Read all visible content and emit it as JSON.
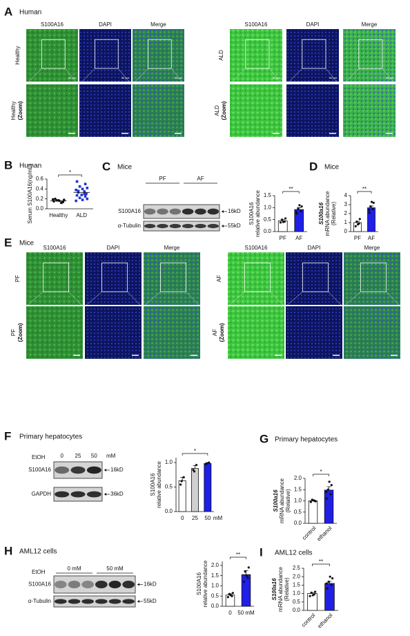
{
  "panels": [
    {
      "label": "A",
      "title": "Human",
      "images": [
        {
          "columns": [
            "S100A16",
            "DAPI",
            "Merge"
          ],
          "rows": [
            "Healthy",
            "Healthy"
          ],
          "zoom": "(Zoom)",
          "scale": "50 μm"
        },
        {
          "columns": [
            "S100A16",
            "DAPI",
            "Merge"
          ],
          "rows": [
            "ALD",
            "ALD"
          ],
          "zoom": "(Zoom)",
          "scale": "50 μm"
        }
      ]
    },
    {
      "label": "B",
      "title": "Human",
      "chart": {
        "type": "scatter",
        "ylabel": [
          "Serum S100A16(ng/mL)"
        ],
        "categories": [
          "Healthy",
          "ALD"
        ],
        "points": [
          [
            0.15,
            0.13,
            0.17,
            0.18,
            0.16,
            0.19,
            0.12,
            0.2,
            0.14,
            0.17
          ],
          [
            0.55,
            0.5,
            0.45,
            0.42,
            0.4,
            0.38,
            0.35,
            0.33,
            0.3,
            0.28,
            0.27,
            0.25,
            0.22,
            0.2,
            0.18,
            0.16,
            0.3,
            0.36
          ]
        ],
        "means": [
          0.16,
          0.33
        ],
        "colors": [
          "#111111",
          "#2233cc"
        ],
        "ylim": [
          0,
          0.6
        ],
        "yticks": [
          {
            "value": 0,
            "label": "0.0"
          },
          0.2,
          0.4,
          0.6
        ],
        "significance": "*"
      }
    },
    {
      "label": "C",
      "title": "Mice",
      "blot": {
        "groups": [
          "PF",
          "AF"
        ],
        "rows": [
          {
            "name": "S100A16",
            "size": "16kD"
          },
          {
            "name": "α-Tubulin",
            "size": "55kD"
          }
        ]
      },
      "chart": {
        "type": "bar",
        "ylabel": [
          "S100A16",
          "relative abundance"
        ],
        "categories": [
          "PF",
          "AF"
        ],
        "values": [
          0.45,
          0.92
        ],
        "errors": [
          0.05,
          0.08
        ],
        "colors": [
          "#ffffff",
          "#1f1fe6"
        ],
        "points": [
          [
            0.38,
            0.42,
            0.5,
            0.55,
            0.4
          ],
          [
            0.75,
            0.85,
            0.95,
            1.05,
            1.1,
            0.82
          ]
        ],
        "ylim": [
          0,
          1.5
        ],
        "yticks": [
          {
            "value": 0,
            "label": "0.0"
          },
          0.5,
          {
            "value": 1,
            "label": "1.0"
          },
          1.5
        ],
        "significance": "**"
      }
    },
    {
      "label": "D",
      "title": "Mice",
      "chart": {
        "type": "bar",
        "ylabel": [
          "S100a16",
          "mRNA abundance",
          "(Relative)"
        ],
        "categories": [
          "PF",
          "AF"
        ],
        "values": [
          1.0,
          2.65
        ],
        "errors": [
          0.15,
          0.2
        ],
        "colors": [
          "#ffffff",
          "#1f1fe6"
        ],
        "points": [
          [
            0.6,
            0.9,
            1.1,
            1.4,
            0.8
          ],
          [
            2.1,
            2.5,
            2.8,
            3.2,
            3.3,
            2.4
          ]
        ],
        "ylim": [
          0,
          4
        ],
        "yticks": [
          0,
          1,
          2,
          3,
          4
        ],
        "significance": "**"
      }
    },
    {
      "label": "E",
      "title": "Mice",
      "images": [
        {
          "columns": [
            "S100A16",
            "DAPI",
            "Merge"
          ],
          "rows": [
            "PF",
            "PF"
          ],
          "zoom": "(Zoom)"
        },
        {
          "columns": [
            "S100A16",
            "DAPI",
            "Merge"
          ],
          "rows": [
            "AF",
            "AF"
          ],
          "zoom": "(Zoom)"
        }
      ]
    },
    {
      "label": "F",
      "title": "Primary hepatocytes",
      "blot": {
        "treatment": "EtOH",
        "lanes": [
          "0",
          "25",
          "50"
        ],
        "unit": "mM",
        "rows": [
          {
            "name": "S100A16",
            "size": "16kD"
          },
          {
            "name": "GAPDH",
            "size": "36kD"
          }
        ]
      },
      "chart": {
        "type": "bar",
        "ylabel": [
          "S100A16",
          "relative abundance"
        ],
        "categories": [
          "0",
          "25",
          "50"
        ],
        "xunit": "mM",
        "values": [
          0.63,
          0.88,
          0.98
        ],
        "errors": [
          0.07,
          0.06,
          0.02
        ],
        "colors": [
          "#ffffff",
          "#d0d0d0",
          "#1f1fe6"
        ],
        "points": [
          [
            0.55,
            0.7,
            0.62
          ],
          [
            0.85,
            0.95,
            0.82
          ],
          [
            0.97,
            1.0,
            0.98
          ]
        ],
        "ylim": [
          0,
          1.1
        ],
        "yticks": [
          {
            "value": 0,
            "label": "0.0"
          },
          0.5,
          {
            "value": 1,
            "label": "1.0"
          }
        ],
        "significance": "*"
      }
    },
    {
      "label": "G",
      "title": "Primary hepatocytes",
      "chart": {
        "type": "bar",
        "ylabel": [
          "S100a16",
          "mRNA abundance",
          "(Relative)"
        ],
        "categories": [
          "control",
          "ethanol"
        ],
        "rotate_labels": true,
        "values": [
          1.0,
          1.48
        ],
        "errors": [
          0.04,
          0.15
        ],
        "colors": [
          "#ffffff",
          "#1f1fe6"
        ],
        "points": [
          [
            0.95,
            1.0,
            1.05,
            0.98,
            1.02
          ],
          [
            1.1,
            1.3,
            1.5,
            1.7,
            1.85,
            1.4
          ]
        ],
        "ylim": [
          0,
          2.0
        ],
        "yticks": [
          {
            "value": 0,
            "label": "0.0"
          },
          0.5,
          {
            "value": 1,
            "label": "1.0"
          },
          1.5,
          {
            "value": 2,
            "label": "2.0"
          }
        ],
        "significance": "*"
      }
    },
    {
      "label": "H",
      "title": "AML12 cells",
      "blot": {
        "treatment": "EtOH",
        "groups": [
          "0 mM",
          "50 mM"
        ],
        "rows": [
          {
            "name": "S100A16",
            "size": "16kD"
          },
          {
            "name": "α-Tubulin",
            "size": "55kD"
          }
        ]
      },
      "chart": {
        "type": "bar",
        "ylabel": [
          "S100A16",
          "relative abundance"
        ],
        "categories": [
          "0",
          "50 mM"
        ],
        "values": [
          0.55,
          1.55
        ],
        "errors": [
          0.06,
          0.2
        ],
        "colors": [
          "#ffffff",
          "#1f1fe6"
        ],
        "points": [
          [
            0.45,
            0.5,
            0.6,
            0.65,
            0.55
          ],
          [
            1.2,
            1.4,
            1.7,
            1.9,
            1.5
          ]
        ],
        "ylim": [
          0,
          2.2
        ],
        "yticks": [
          {
            "value": 0,
            "label": "0.0"
          },
          0.5,
          {
            "value": 1,
            "label": "1.0"
          },
          1.5,
          {
            "value": 2,
            "label": "2.0"
          }
        ],
        "significance": "**"
      }
    },
    {
      "label": "I",
      "title": "AML12 cells",
      "chart": {
        "type": "bar",
        "ylabel": [
          "S100a16",
          "mRNA abundance",
          "(Relative)"
        ],
        "categories": [
          "control",
          "ethanol"
        ],
        "rotate_labels": true,
        "values": [
          1.0,
          1.6
        ],
        "errors": [
          0.06,
          0.12
        ],
        "colors": [
          "#ffffff",
          "#1f1fe6"
        ],
        "points": [
          [
            0.85,
            0.95,
            1.05,
            1.1,
            0.9
          ],
          [
            1.3,
            1.5,
            1.7,
            1.9,
            2.0,
            1.6
          ]
        ],
        "ylim": [
          0,
          2.5
        ],
        "yticks": [
          {
            "value": 0,
            "label": "0.0"
          },
          0.5,
          {
            "value": 1,
            "label": "1.0"
          },
          1.5,
          {
            "value": 2,
            "label": "2.0"
          },
          2.5
        ],
        "significance": "**"
      }
    }
  ]
}
